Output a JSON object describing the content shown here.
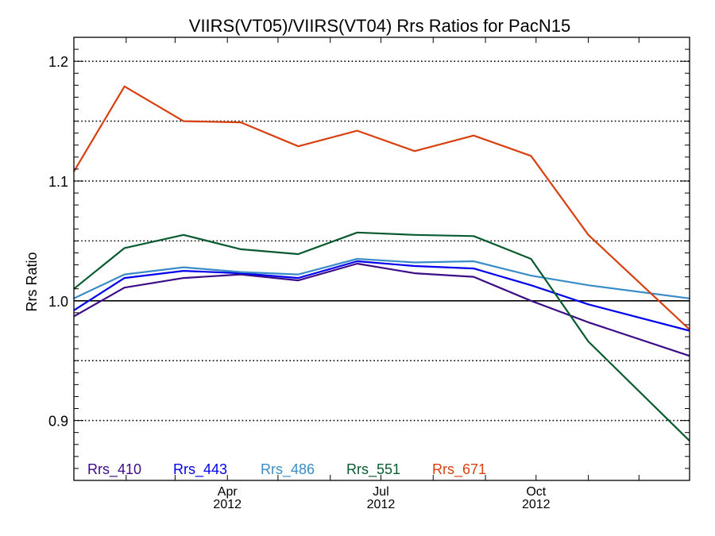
{
  "chart_data": {
    "type": "line",
    "title": "VIIRS(VT05)/VIIRS(VT04)  Rrs Ratios for PacN15",
    "ylabel": "Rrs Ratio",
    "xlabel": "",
    "ylim": [
      0.85,
      1.22
    ],
    "xlim": [
      "2012-01-01",
      "2012-12-31"
    ],
    "y_major_ticks": [
      0.9,
      1.0,
      1.1,
      1.2
    ],
    "y_tick_labels": [
      "0.9",
      "1.0",
      "1.1",
      "1.2"
    ],
    "y_dotted_gridlines": [
      0.9,
      0.95,
      1.05,
      1.1,
      1.15,
      1.2
    ],
    "y_reference_line": 1.0,
    "x_tick_labels": [
      {
        "date": "2012-04-01",
        "month": "Apr",
        "year": "2012"
      },
      {
        "date": "2012-07-01",
        "month": "Jul",
        "year": "2012"
      },
      {
        "date": "2012-10-01",
        "month": "Oct",
        "year": "2012"
      }
    ],
    "x_minor_ticks": [
      "2012-02-01",
      "2012-03-01",
      "2012-04-01",
      "2012-05-01",
      "2012-06-01",
      "2012-07-01",
      "2012-08-01",
      "2012-09-01",
      "2012-10-01",
      "2012-11-01",
      "2012-12-01"
    ],
    "x": [
      "2012-01-01",
      "2012-01-31",
      "2012-03-06",
      "2012-04-09",
      "2012-05-13",
      "2012-06-17",
      "2012-07-21",
      "2012-08-25",
      "2012-09-28",
      "2012-11-01",
      "2012-12-31"
    ],
    "series": [
      {
        "name": "Rrs_410",
        "color": "#3d0c87",
        "values": [
          0.987,
          1.011,
          1.019,
          1.022,
          1.017,
          1.031,
          1.023,
          1.02,
          1.0,
          0.982,
          0.954
        ]
      },
      {
        "name": "Rrs_443",
        "color": "#0000ee",
        "values": [
          0.992,
          1.019,
          1.025,
          1.023,
          1.019,
          1.033,
          1.029,
          1.027,
          1.013,
          0.997,
          0.975
        ]
      },
      {
        "name": "Rrs_486",
        "color": "#3a8cc8",
        "values": [
          1.002,
          1.022,
          1.028,
          1.024,
          1.022,
          1.035,
          1.032,
          1.033,
          1.021,
          1.013,
          1.002
        ]
      },
      {
        "name": "Rrs_551",
        "color": "#0a5a30",
        "values": [
          1.01,
          1.044,
          1.055,
          1.043,
          1.039,
          1.057,
          1.055,
          1.054,
          1.035,
          0.966,
          0.883
        ]
      },
      {
        "name": "Rrs_671",
        "color": "#d94010",
        "values": [
          1.108,
          1.179,
          1.15,
          1.149,
          1.129,
          1.142,
          1.125,
          1.138,
          1.121,
          1.055,
          0.976
        ]
      }
    ],
    "legend_position": "bottom",
    "grid": "dotted horizontal"
  }
}
